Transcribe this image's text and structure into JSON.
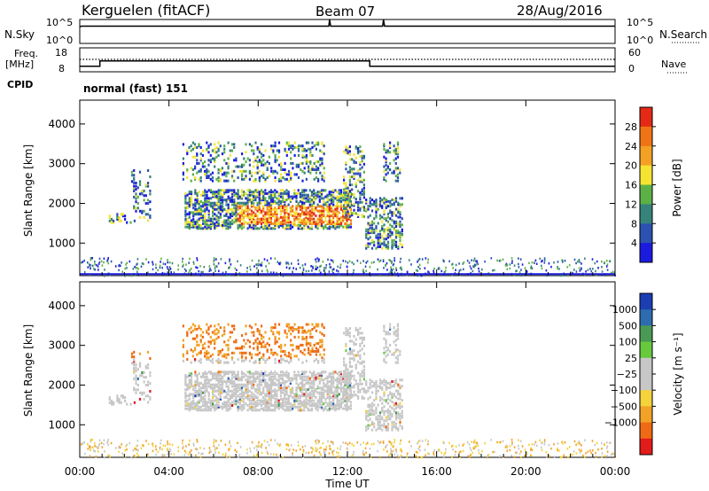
{
  "header": {
    "station": "Kerguelen (fitACF)",
    "beam": "Beam 07",
    "date": "28/Aug/2016"
  },
  "chart_data": [
    {
      "type": "line",
      "panel": "nsky-nsearch",
      "left_label": "N.Sky",
      "right_label": "N.Search",
      "left_ticks": [
        "10^5",
        "10^0"
      ],
      "right_ticks": [
        "10^5",
        "10^0"
      ],
      "x": [
        "00:00",
        "00:05",
        "11:10",
        "11:12",
        "11:15",
        "13:35",
        "13:37",
        "13:40",
        "24:00"
      ],
      "y": [
        3000,
        4000,
        4000,
        100000,
        4000,
        4000,
        100000,
        4000,
        4000
      ]
    },
    {
      "type": "line",
      "panel": "freq-nave",
      "left_label": "Freq.",
      "left_unit": "[MHz]",
      "right_label": "Nave",
      "cpid_label": "CPID",
      "left_ticks": [
        8,
        18
      ],
      "right_ticks": [
        0,
        60
      ],
      "ylim": [
        8,
        18
      ],
      "series": [
        {
          "values_x": [
            "00:00",
            "00:54",
            "00:54",
            "13:00",
            "13:00",
            "24:00"
          ],
          "values": [
            10.3,
            10.3,
            12.5,
            12.5,
            10.3,
            10.3
          ]
        },
        {
          "values_x": [
            "00:00",
            "24:00"
          ],
          "values": [
            13.2,
            13.2
          ]
        }
      ],
      "cpid_text": "normal (fast) 151"
    },
    {
      "type": "heatmap",
      "panel": "power",
      "ylabel": "Slant Range [km]",
      "yticks": [
        1000,
        2000,
        3000,
        4000
      ],
      "ylim": [
        180,
        4600
      ],
      "colorbar_label": "Power [dB]",
      "colorbar_ticks": [
        4,
        8,
        12,
        16,
        20,
        24,
        28
      ],
      "colors": [
        "#1b1bdf",
        "#2b52b0",
        "#36837c",
        "#5cb146",
        "#f4e431",
        "#f3a025",
        "#ef7415",
        "#e42a16"
      ]
    },
    {
      "type": "heatmap",
      "panel": "velocity",
      "xlabel": "Time UT",
      "ylabel": "Slant Range [km]",
      "xticks": [
        "00:00",
        "04:00",
        "08:00",
        "12:00",
        "16:00",
        "20:00",
        "00:00"
      ],
      "yticks": [
        1000,
        2000,
        3000,
        4000
      ],
      "ylim": [
        180,
        4600
      ],
      "colorbar_label": "Velocity [m s⁻¹]",
      "colorbar_ticks": [
        "1000",
        "500",
        "100",
        "25",
        "−25",
        "−100",
        "−500",
        "−1000"
      ],
      "colors": [
        "#1b3eb3",
        "#2e6cb0",
        "#4a9a55",
        "#66c93e",
        "#c7c7c7",
        "#c7c7c7",
        "#f4d33b",
        "#f1a227",
        "#ee6a15",
        "#e21b1b"
      ]
    }
  ],
  "axes": {
    "time_label": "Time UT"
  }
}
